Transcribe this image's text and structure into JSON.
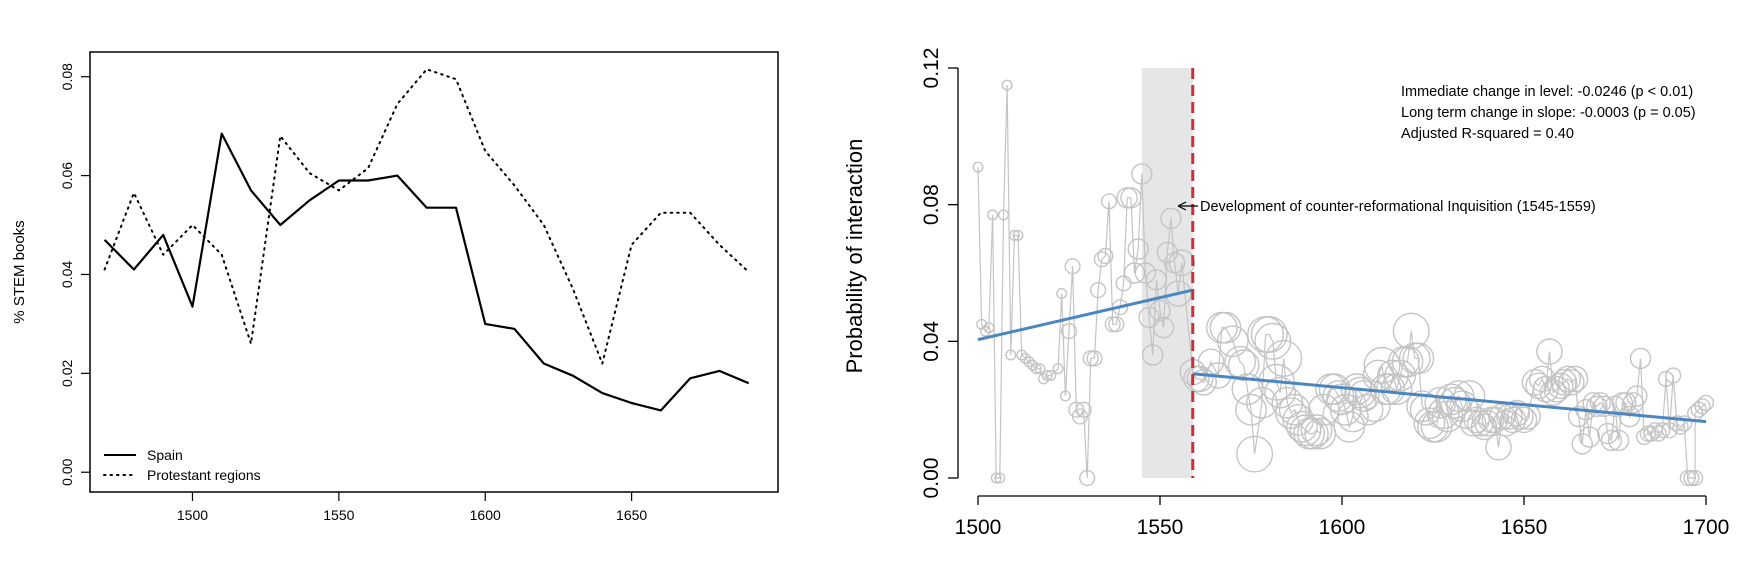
{
  "chart_data": [
    {
      "type": "line",
      "title": "",
      "xlabel": "",
      "ylabel": "% STEM books",
      "xlim": [
        1465,
        1700
      ],
      "ylim": [
        -0.004,
        0.085
      ],
      "xticks": [
        "1500",
        "1550",
        "1600",
        "1650"
      ],
      "yticks": [
        "0.00",
        "0.02",
        "0.04",
        "0.06",
        "0.08"
      ],
      "legend": {
        "placement": "bottom-left",
        "entries": [
          "Spain",
          "Protestant regions"
        ]
      },
      "x": [
        1470,
        1480,
        1490,
        1500,
        1510,
        1520,
        1530,
        1540,
        1550,
        1560,
        1570,
        1580,
        1590,
        1600,
        1610,
        1620,
        1630,
        1640,
        1650,
        1660,
        1670,
        1680,
        1690
      ],
      "series": [
        {
          "name": "Spain",
          "style": "solid",
          "values": [
            0.047,
            0.041,
            0.048,
            0.0335,
            0.0685,
            0.057,
            0.05,
            0.055,
            0.059,
            0.059,
            0.06,
            0.0535,
            0.0535,
            0.03,
            0.029,
            0.022,
            0.0195,
            0.016,
            0.014,
            0.0125,
            0.019,
            0.0205,
            0.018
          ]
        },
        {
          "name": "Protestant regions",
          "style": "dotted",
          "values": [
            0.041,
            0.0565,
            0.044,
            0.05,
            0.044,
            0.026,
            0.068,
            0.0605,
            0.057,
            0.0615,
            0.0745,
            0.0815,
            0.0795,
            0.065,
            0.058,
            0.05,
            0.037,
            0.022,
            0.046,
            0.0525,
            0.0525,
            0.046,
            0.0405
          ]
        }
      ]
    },
    {
      "type": "scatter",
      "title": "",
      "xlabel": "",
      "ylabel": "Probability of interaction",
      "xlim": [
        1500,
        1700
      ],
      "ylim": [
        0.0,
        0.12
      ],
      "xticks": [
        "1500",
        "1550",
        "1600",
        "1650",
        "1700"
      ],
      "yticks": [
        "0.00",
        "0.04",
        "0.08",
        "0.12"
      ],
      "annotations": {
        "stats": [
          "Immediate change in level: -0.0246 (p < 0.01)",
          "Long term change in slope: -0.0003 (p = 0.05)",
          "Adjusted R-squared = 0.40"
        ],
        "event": "Development of counter-reformational Inquisition (1545-1559)"
      },
      "shaded_period": [
        1545,
        1559
      ],
      "cutoff_year": 1559,
      "colors": {
        "points": "#c4c4c4",
        "fit": "#4a86c0",
        "cutoff": "#c8313a",
        "shade": "#e6e6e6"
      },
      "fit_segments": [
        {
          "from": [
            1500,
            0.0405
          ],
          "to": [
            1559,
            0.055
          ]
        },
        {
          "from": [
            1559,
            0.0305
          ],
          "to": [
            1700,
            0.0165
          ]
        }
      ],
      "points": [
        [
          1500,
          0.091,
          1
        ],
        [
          1501,
          0.045,
          1
        ],
        [
          1502,
          0.043,
          1
        ],
        [
          1503,
          0.044,
          1
        ],
        [
          1504,
          0.077,
          1
        ],
        [
          1505,
          0.0,
          1
        ],
        [
          1506,
          0.0,
          1
        ],
        [
          1507,
          0.077,
          1
        ],
        [
          1508,
          0.115,
          1
        ],
        [
          1509,
          0.036,
          1
        ],
        [
          1510,
          0.071,
          1
        ],
        [
          1511,
          0.071,
          1
        ],
        [
          1512,
          0.036,
          1
        ],
        [
          1513,
          0.035,
          1
        ],
        [
          1514,
          0.034,
          1
        ],
        [
          1515,
          0.033,
          1
        ],
        [
          1516,
          0.032,
          1
        ],
        [
          1517,
          0.032,
          1
        ],
        [
          1518,
          0.029,
          1
        ],
        [
          1519,
          0.03,
          1
        ],
        [
          1520,
          0.03,
          1
        ],
        [
          1522,
          0.032,
          1
        ],
        [
          1523,
          0.054,
          1
        ],
        [
          1524,
          0.024,
          1
        ],
        [
          1525,
          0.043,
          2
        ],
        [
          1526,
          0.062,
          2
        ],
        [
          1527,
          0.02,
          2
        ],
        [
          1528,
          0.018,
          2
        ],
        [
          1529,
          0.02,
          2
        ],
        [
          1530,
          0.0,
          2
        ],
        [
          1531,
          0.035,
          2
        ],
        [
          1532,
          0.035,
          2
        ],
        [
          1533,
          0.055,
          2
        ],
        [
          1534,
          0.064,
          2
        ],
        [
          1535,
          0.065,
          2
        ],
        [
          1536,
          0.081,
          2
        ],
        [
          1537,
          0.045,
          2
        ],
        [
          1538,
          0.045,
          2
        ],
        [
          1539,
          0.05,
          2
        ],
        [
          1540,
          0.057,
          2
        ],
        [
          1541,
          0.082,
          3
        ],
        [
          1542,
          0.082,
          3
        ],
        [
          1543,
          0.06,
          3
        ],
        [
          1544,
          0.067,
          3
        ],
        [
          1545,
          0.089,
          3
        ],
        [
          1546,
          0.06,
          3
        ],
        [
          1547,
          0.047,
          3
        ],
        [
          1548,
          0.036,
          3
        ],
        [
          1549,
          0.058,
          3
        ],
        [
          1550,
          0.049,
          3
        ],
        [
          1551,
          0.044,
          3
        ],
        [
          1552,
          0.066,
          3
        ],
        [
          1553,
          0.076,
          3
        ],
        [
          1554,
          0.063,
          3
        ],
        [
          1555,
          0.054,
          4
        ],
        [
          1556,
          0.063,
          4
        ],
        [
          1559,
          0.031,
          4
        ],
        [
          1560,
          0.029,
          4
        ],
        [
          1561,
          0.029,
          4
        ],
        [
          1562,
          0.028,
          4
        ],
        [
          1564,
          0.034,
          4
        ],
        [
          1566,
          0.03,
          4
        ],
        [
          1567,
          0.044,
          5
        ],
        [
          1568,
          0.044,
          5
        ],
        [
          1570,
          0.04,
          5
        ],
        [
          1572,
          0.034,
          5
        ],
        [
          1573,
          0.033,
          5
        ],
        [
          1574,
          0.026,
          5
        ],
        [
          1575,
          0.02,
          5
        ],
        [
          1576,
          0.007,
          6
        ],
        [
          1578,
          0.022,
          5
        ],
        [
          1579,
          0.042,
          6
        ],
        [
          1580,
          0.042,
          6
        ],
        [
          1581,
          0.04,
          6
        ],
        [
          1582,
          0.028,
          6
        ],
        [
          1583,
          0.025,
          5
        ],
        [
          1584,
          0.035,
          6
        ],
        [
          1585,
          0.022,
          5
        ],
        [
          1586,
          0.019,
          5
        ],
        [
          1587,
          0.02,
          5
        ],
        [
          1588,
          0.017,
          5
        ],
        [
          1589,
          0.015,
          5
        ],
        [
          1590,
          0.014,
          5
        ],
        [
          1591,
          0.013,
          5
        ],
        [
          1592,
          0.013,
          5
        ],
        [
          1593,
          0.014,
          5
        ],
        [
          1594,
          0.013,
          5
        ],
        [
          1595,
          0.02,
          5
        ],
        [
          1597,
          0.026,
          5
        ],
        [
          1598,
          0.026,
          5
        ],
        [
          1599,
          0.024,
          5
        ],
        [
          1600,
          0.023,
          5
        ],
        [
          1601,
          0.02,
          5
        ],
        [
          1602,
          0.015,
          5
        ],
        [
          1603,
          0.018,
          5
        ],
        [
          1604,
          0.026,
          5
        ],
        [
          1605,
          0.025,
          5
        ],
        [
          1606,
          0.024,
          5
        ],
        [
          1607,
          0.02,
          5
        ],
        [
          1609,
          0.021,
          5
        ],
        [
          1610,
          0.03,
          5
        ],
        [
          1611,
          0.033,
          6
        ],
        [
          1612,
          0.026,
          5
        ],
        [
          1613,
          0.026,
          5
        ],
        [
          1614,
          0.03,
          5
        ],
        [
          1615,
          0.026,
          5
        ],
        [
          1616,
          0.03,
          5
        ],
        [
          1617,
          0.034,
          5
        ],
        [
          1618,
          0.034,
          5
        ],
        [
          1619,
          0.043,
          6
        ],
        [
          1620,
          0.035,
          5
        ],
        [
          1621,
          0.035,
          5
        ],
        [
          1622,
          0.021,
          5
        ],
        [
          1623,
          0.02,
          5
        ],
        [
          1624,
          0.016,
          5
        ],
        [
          1625,
          0.015,
          5
        ],
        [
          1626,
          0.015,
          5
        ],
        [
          1627,
          0.022,
          5
        ],
        [
          1628,
          0.019,
          5
        ],
        [
          1629,
          0.018,
          5
        ],
        [
          1630,
          0.023,
          5
        ],
        [
          1631,
          0.022,
          5
        ],
        [
          1632,
          0.024,
          5
        ],
        [
          1633,
          0.021,
          5
        ],
        [
          1634,
          0.019,
          5
        ],
        [
          1635,
          0.024,
          5
        ],
        [
          1636,
          0.016,
          4
        ],
        [
          1637,
          0.017,
          4
        ],
        [
          1638,
          0.016,
          4
        ],
        [
          1639,
          0.015,
          4
        ],
        [
          1640,
          0.016,
          4
        ],
        [
          1641,
          0.017,
          4
        ],
        [
          1642,
          0.017,
          4
        ],
        [
          1643,
          0.009,
          4
        ],
        [
          1644,
          0.018,
          4
        ],
        [
          1645,
          0.016,
          4
        ],
        [
          1646,
          0.018,
          4
        ],
        [
          1647,
          0.017,
          4
        ],
        [
          1648,
          0.019,
          4
        ],
        [
          1649,
          0.018,
          4
        ],
        [
          1650,
          0.017,
          4
        ],
        [
          1651,
          0.018,
          4
        ],
        [
          1653,
          0.028,
          4
        ],
        [
          1654,
          0.027,
          4
        ],
        [
          1655,
          0.029,
          4
        ],
        [
          1656,
          0.026,
          4
        ],
        [
          1657,
          0.037,
          4
        ],
        [
          1658,
          0.025,
          4
        ],
        [
          1659,
          0.026,
          4
        ],
        [
          1660,
          0.027,
          4
        ],
        [
          1661,
          0.028,
          4
        ],
        [
          1662,
          0.029,
          4
        ],
        [
          1663,
          0.028,
          4
        ],
        [
          1664,
          0.029,
          4
        ],
        [
          1665,
          0.018,
          3
        ],
        [
          1666,
          0.01,
          3
        ],
        [
          1667,
          0.02,
          3
        ],
        [
          1668,
          0.012,
          3
        ],
        [
          1669,
          0.022,
          3
        ],
        [
          1670,
          0.021,
          3
        ],
        [
          1671,
          0.022,
          3
        ],
        [
          1672,
          0.021,
          3
        ],
        [
          1673,
          0.013,
          3
        ],
        [
          1674,
          0.011,
          3
        ],
        [
          1675,
          0.021,
          3
        ],
        [
          1676,
          0.011,
          3
        ],
        [
          1677,
          0.022,
          3
        ],
        [
          1678,
          0.022,
          3
        ],
        [
          1679,
          0.018,
          3
        ],
        [
          1680,
          0.022,
          3
        ],
        [
          1681,
          0.024,
          3
        ],
        [
          1682,
          0.035,
          3
        ],
        [
          1683,
          0.012,
          2
        ],
        [
          1684,
          0.013,
          2
        ],
        [
          1685,
          0.013,
          2
        ],
        [
          1686,
          0.014,
          2
        ],
        [
          1687,
          0.013,
          2
        ],
        [
          1688,
          0.014,
          2
        ],
        [
          1689,
          0.029,
          2
        ],
        [
          1690,
          0.014,
          2
        ],
        [
          1691,
          0.03,
          2
        ],
        [
          1692,
          0.016,
          2
        ],
        [
          1693,
          0.015,
          2
        ],
        [
          1694,
          0.016,
          2
        ],
        [
          1695,
          0.0,
          2
        ],
        [
          1696,
          0.0,
          2
        ],
        [
          1697,
          0.0,
          2
        ],
        [
          1697,
          0.019,
          2
        ],
        [
          1698,
          0.02,
          2
        ],
        [
          1699,
          0.021,
          2
        ],
        [
          1700,
          0.022,
          2
        ]
      ]
    }
  ]
}
